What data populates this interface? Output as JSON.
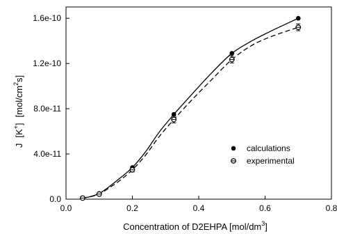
{
  "chart_data": {
    "type": "scatter",
    "xlabel": {
      "main": "Concentration of D2EHPA [mol/dm",
      "sup": "3",
      "end": "]"
    },
    "ylabel": {
      "j": "J",
      "k": "[K",
      "ksup": "+",
      "kend": "]",
      "unit": "[mol/cm",
      "unitsup": "2",
      "unitend": "s]"
    },
    "xlim": [
      0.0,
      0.8
    ],
    "ylim": [
      0.0,
      1.7e-10
    ],
    "xticks": [
      0.0,
      0.2,
      0.4,
      0.6,
      0.8
    ],
    "xtick_labels": [
      "0.0",
      "0.2",
      "0.4",
      "0.6",
      "0.8"
    ],
    "yticks": [
      0.0,
      4e-11,
      8e-11,
      1.2e-10,
      1.6e-10
    ],
    "ytick_labels": [
      "0.0",
      "4.0e-11",
      "8.0e-11",
      "1.2e-10",
      "1.6e-10"
    ],
    "grid": false,
    "legend": {
      "placement": "lower-right",
      "entries": [
        "calculations",
        "experimental"
      ]
    },
    "series": [
      {
        "name": "calculations",
        "marker": "filled-circle",
        "line": "solid",
        "x": [
          0.05,
          0.1,
          0.2,
          0.325,
          0.5,
          0.7
        ],
        "y": [
          1e-12,
          5e-12,
          2.8e-11,
          7.5e-11,
          1.29e-10,
          1.6e-10
        ],
        "curve_x": [
          0.05,
          0.07,
          0.1,
          0.13,
          0.16,
          0.2,
          0.24,
          0.28,
          0.325,
          0.38,
          0.44,
          0.5,
          0.56,
          0.62,
          0.7
        ],
        "curve_y": [
          1e-12,
          2e-12,
          5e-12,
          1.1e-11,
          1.8e-11,
          2.8e-11,
          4.2e-11,
          5.9e-11,
          7.5e-11,
          9.3e-11,
          1.12e-10,
          1.29e-10,
          1.4e-10,
          1.49e-10,
          1.6e-10
        ]
      },
      {
        "name": "experimental",
        "marker": "open-circle",
        "line": "dashed",
        "x": [
          0.05,
          0.1,
          0.2,
          0.325,
          0.5,
          0.7
        ],
        "y": [
          1e-12,
          4.5e-12,
          2.6e-11,
          7.05e-11,
          1.235e-10,
          1.52e-10
        ],
        "yerr": [
          1e-12,
          1e-12,
          2e-12,
          3e-12,
          3e-12,
          3e-12
        ],
        "curve_x": [
          0.05,
          0.07,
          0.1,
          0.13,
          0.16,
          0.2,
          0.24,
          0.28,
          0.325,
          0.38,
          0.44,
          0.5,
          0.56,
          0.62,
          0.7
        ],
        "curve_y": [
          1e-12,
          2e-12,
          4.5e-12,
          1e-11,
          1.6e-11,
          2.6e-11,
          3.9e-11,
          5.5e-11,
          7.05e-11,
          8.8e-11,
          1.06e-10,
          1.235e-10,
          1.36e-10,
          1.44e-10,
          1.52e-10
        ]
      }
    ],
    "colors": {
      "axis": "#000000",
      "marker": "#000000"
    }
  }
}
